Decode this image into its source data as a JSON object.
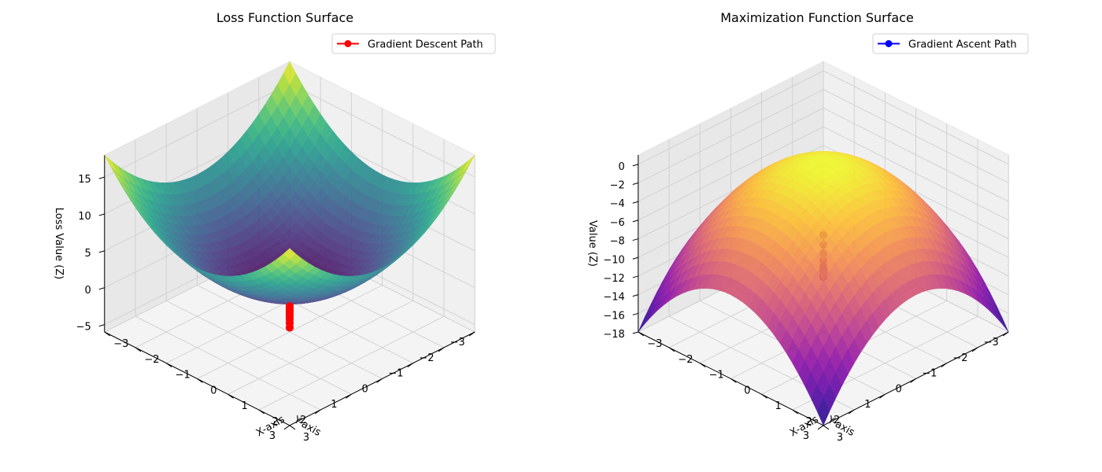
{
  "chart_data": [
    {
      "type": "surface3d",
      "title": "Loss Function Surface",
      "xlabel": "X-axis",
      "ylabel": "Y-axis",
      "zlabel": "Loss Value (Z)",
      "function": "z = x^2 + y^2",
      "x_range": [
        -3,
        3
      ],
      "y_range": [
        -3,
        3
      ],
      "zlim": [
        -6,
        18
      ],
      "x_ticks": [
        -3,
        -2,
        -1,
        0,
        1,
        2,
        3
      ],
      "y_ticks": [
        -3,
        -2,
        -1,
        0,
        1,
        2,
        3
      ],
      "z_ticks": [
        -5,
        0,
        5,
        10,
        15
      ],
      "colormap": "viridis",
      "legend": {
        "label": "Gradient Descent Path",
        "position": "top-right",
        "color": "#ff0000"
      },
      "path": {
        "x": [
          0,
          0,
          0,
          0,
          0,
          0,
          0,
          0,
          0,
          0
        ],
        "y": [
          0,
          0,
          0,
          0,
          0,
          0,
          0,
          0,
          0,
          0
        ],
        "z": [
          -5.4,
          -4.8,
          -4.3,
          -3.9,
          -3.6,
          -3.3,
          -3.1,
          -2.9,
          -2.7,
          -2.5
        ]
      }
    },
    {
      "type": "surface3d",
      "title": "Maximization Function Surface",
      "xlabel": "X-axis",
      "ylabel": "Y-axis",
      "zlabel": "Value (Z)",
      "function": "z = -(x^2 + y^2)",
      "x_range": [
        -3,
        3
      ],
      "y_range": [
        -3,
        3
      ],
      "zlim": [
        -18,
        1
      ],
      "x_ticks": [
        -3,
        -2,
        -1,
        0,
        1,
        2,
        3
      ],
      "y_ticks": [
        -3,
        -2,
        -1,
        0,
        1,
        2,
        3
      ],
      "z_ticks": [
        -18,
        -16,
        -14,
        -12,
        -10,
        -8,
        -6,
        -4,
        -2,
        0
      ],
      "colormap": "plasma",
      "legend": {
        "label": "Gradient Ascent Path",
        "position": "top-right",
        "color": "#0000ff"
      },
      "path": {
        "x": [
          0,
          0,
          0,
          0,
          0,
          0,
          0,
          0,
          0,
          0
        ],
        "y": [
          0,
          0,
          0,
          0,
          0,
          0,
          0,
          0,
          0,
          0
        ],
        "z": [
          -7.6,
          -8.6,
          -9.6,
          -10.3,
          -10.9,
          -11.3,
          -11.6,
          -11.8,
          -12.0,
          -12.1
        ]
      }
    }
  ]
}
